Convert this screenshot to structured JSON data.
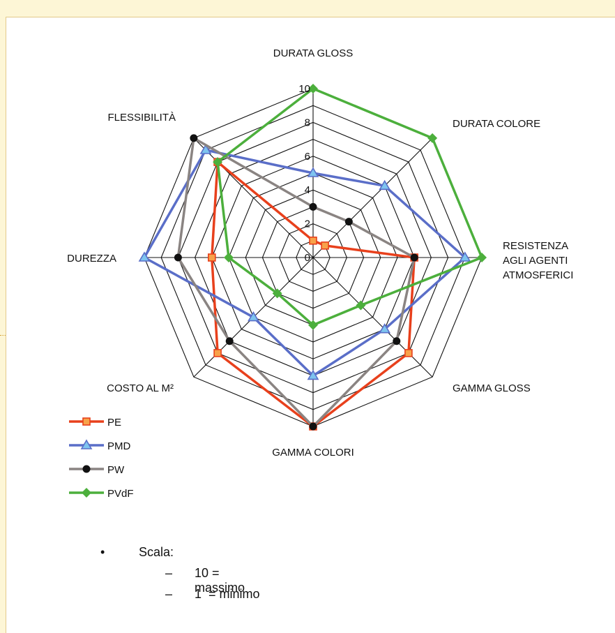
{
  "chart_data": {
    "type": "radar",
    "axes": [
      "DURATA GLOSS",
      "DURATA COLORE",
      "RESISTENZA AGLI AGENTI ATMOSFERICI",
      "GAMMA GLOSS",
      "GAMMA COLORI",
      "COSTO AL M²",
      "DUREZZA",
      "FLESSIBILITÀ"
    ],
    "axis_label_lines": [
      [
        "DURATA GLOSS"
      ],
      [
        "DURATA COLORE"
      ],
      [
        "RESISTENZA",
        "AGLI AGENTI",
        "ATMOSFERICI"
      ],
      [
        "GAMMA GLOSS"
      ],
      [
        "GAMMA COLORI"
      ],
      [
        "COSTO AL M²"
      ],
      [
        "DUREZZA"
      ],
      [
        "FLESSIBILITÀ"
      ]
    ],
    "rlim": [
      0,
      10
    ],
    "ticks": [
      "0",
      "2",
      "4",
      "6",
      "8",
      "10"
    ],
    "grid": true,
    "legend_position": "bottom-left",
    "series": [
      {
        "name": "PE",
        "color": "#e8401c",
        "marker": "square",
        "values": [
          1,
          1,
          6,
          8,
          10,
          8,
          6,
          8
        ]
      },
      {
        "name": "PMD",
        "color": "#5a6ec8",
        "marker": "triangle",
        "values": [
          5,
          6,
          9,
          6,
          7,
          5,
          10,
          9
        ]
      },
      {
        "name": "PW",
        "color": "#8a8482",
        "marker": "circle",
        "values": [
          3,
          3,
          6,
          7,
          10,
          7,
          8,
          10
        ]
      },
      {
        "name": "PVdF",
        "color": "#4caf3c",
        "marker": "diamond",
        "values": [
          10,
          10,
          10,
          4,
          4,
          3,
          5,
          8
        ]
      }
    ]
  },
  "notes": {
    "bullet": "•",
    "heading": "Scala:",
    "dash": "–",
    "items": [
      "10 = massimo",
      "1  = minimo"
    ]
  },
  "colors": {
    "background": "#fdf6d6",
    "grid": "#111111"
  }
}
